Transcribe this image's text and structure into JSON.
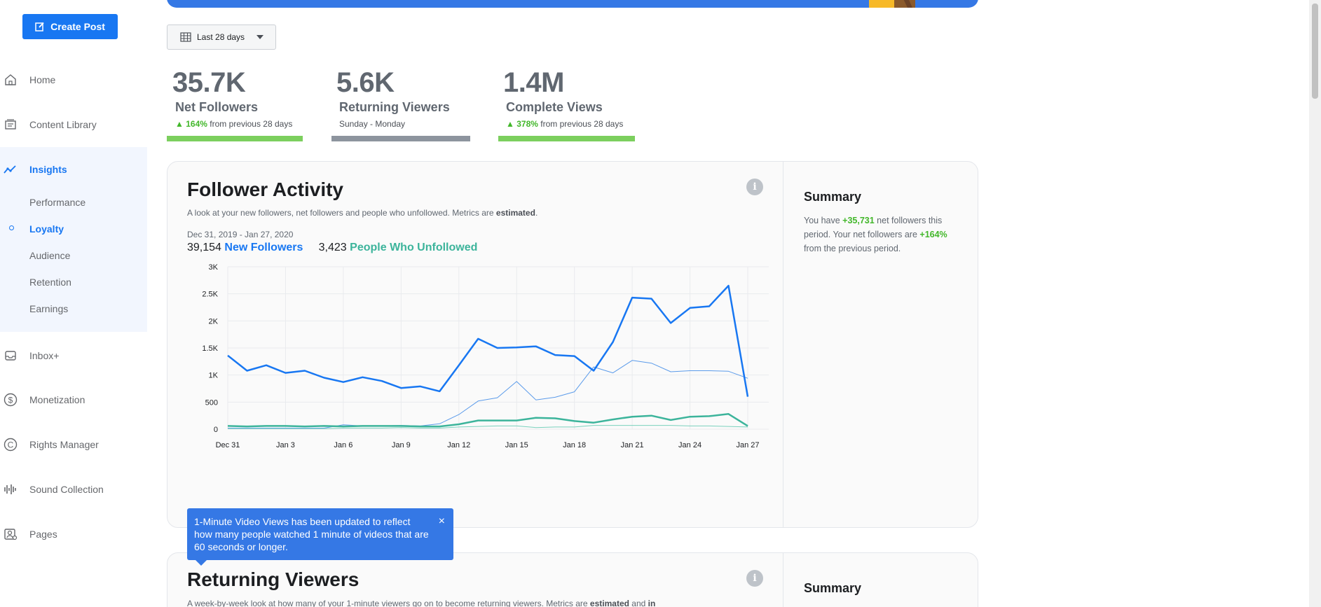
{
  "sidebar": {
    "create_post": "Create Post",
    "items": [
      {
        "label": "Home",
        "icon": "home-icon"
      },
      {
        "label": "Content Library",
        "icon": "content-library-icon"
      },
      {
        "label": "Insights",
        "icon": "insights-icon"
      },
      {
        "label": "Inbox+",
        "icon": "inbox-icon"
      },
      {
        "label": "Monetization",
        "icon": "dollar-icon"
      },
      {
        "label": "Rights Manager",
        "icon": "copyright-icon"
      },
      {
        "label": "Sound Collection",
        "icon": "sound-icon"
      },
      {
        "label": "Pages",
        "icon": "pages-icon"
      }
    ],
    "insights_sub": [
      "Performance",
      "Loyalty",
      "Audience",
      "Retention",
      "Earnings"
    ]
  },
  "date_filter": "Last 28 days",
  "stats": [
    {
      "value": "35.7K",
      "name": "Net Followers",
      "change": "164%",
      "change_text": "from previous 28 days",
      "bar_color": "#7ccf5e"
    },
    {
      "value": "5.6K",
      "name": "Returning Viewers",
      "sub": "Sunday - Monday",
      "bar_color": "#8d949e"
    },
    {
      "value": "1.4M",
      "name": "Complete Views",
      "change": "378%",
      "change_text": "from previous 28 days",
      "bar_color": "#7ccf5e"
    }
  ],
  "follower_card": {
    "title": "Follower Activity",
    "desc_prefix": "A look at your new followers, net followers and people who unfollowed. Metrics are ",
    "desc_bold": "estimated",
    "desc_suffix": ".",
    "date_range": "Dec 31, 2019 - Jan 27, 2020",
    "new_count": "39,154",
    "new_label": "New Followers",
    "unf_count": "3,423",
    "unf_label": "People Who Unfollowed",
    "summary_title": "Summary",
    "summary_1": "You have ",
    "summary_green1": "+35,731",
    "summary_2": " net followers this period. Your net followers are ",
    "summary_green2": "+164%",
    "summary_3": " from the previous period."
  },
  "tooltip": {
    "text": "1-Minute Video Views has been updated to reflect how many people watched 1 minute of videos that are 60 seconds or longer.",
    "close": "×"
  },
  "returning_card": {
    "title": "Returning Viewers",
    "desc_prefix": "A week-by-week look at how many of your 1-minute viewers go on to become returning viewers. Metrics are ",
    "desc_bold": "estimated",
    "desc_suffix": " and ",
    "desc_bold2": "in",
    "summary_title": "Summary"
  },
  "chart_data": {
    "type": "line",
    "x": [
      "Dec 31",
      "Jan 1",
      "Jan 2",
      "Jan 3",
      "Jan 4",
      "Jan 5",
      "Jan 6",
      "Jan 7",
      "Jan 8",
      "Jan 9",
      "Jan 10",
      "Jan 11",
      "Jan 12",
      "Jan 13",
      "Jan 14",
      "Jan 15",
      "Jan 16",
      "Jan 17",
      "Jan 18",
      "Jan 19",
      "Jan 20",
      "Jan 21",
      "Jan 22",
      "Jan 23",
      "Jan 24",
      "Jan 25",
      "Jan 26",
      "Jan 27"
    ],
    "x_tick_labels": [
      "Dec 31",
      "Jan 3",
      "Jan 6",
      "Jan 9",
      "Jan 12",
      "Jan 15",
      "Jan 18",
      "Jan 21",
      "Jan 24",
      "Jan 27"
    ],
    "y_tick_labels": [
      "0",
      "500",
      "1K",
      "1.5K",
      "2K",
      "2.5K",
      "3K"
    ],
    "ylim": [
      0,
      3000
    ],
    "grid": true,
    "series": [
      {
        "name": "New Followers",
        "color": "#1877f2",
        "width": 2.5,
        "values": [
          1360,
          1080,
          1180,
          1040,
          1080,
          950,
          870,
          960,
          890,
          760,
          790,
          700,
          1180,
          1670,
          1500,
          1510,
          1530,
          1370,
          1350,
          1080,
          1610,
          2430,
          2410,
          1960,
          2240,
          2270,
          2650,
          600
        ]
      },
      {
        "color": "#5b9bea",
        "width": 1,
        "values": [
          20,
          20,
          20,
          20,
          20,
          20,
          80,
          60,
          60,
          70,
          60,
          100,
          270,
          520,
          580,
          880,
          540,
          590,
          690,
          1150,
          1040,
          1270,
          1220,
          1060,
          1080,
          1080,
          1070,
          940
        ]
      },
      {
        "name": "People Who Unfollowed",
        "color": "#3cb49b",
        "width": 2.5,
        "values": [
          60,
          50,
          60,
          60,
          50,
          60,
          50,
          60,
          60,
          60,
          50,
          50,
          90,
          160,
          160,
          160,
          210,
          200,
          150,
          120,
          180,
          230,
          250,
          170,
          230,
          240,
          280,
          60
        ]
      },
      {
        "color": "#7ad1bd",
        "width": 1,
        "values": [
          10,
          10,
          10,
          10,
          10,
          10,
          20,
          20,
          20,
          30,
          20,
          20,
          40,
          50,
          60,
          60,
          30,
          40,
          40,
          70,
          70,
          70,
          70,
          70,
          60,
          60,
          50,
          40
        ]
      }
    ]
  }
}
